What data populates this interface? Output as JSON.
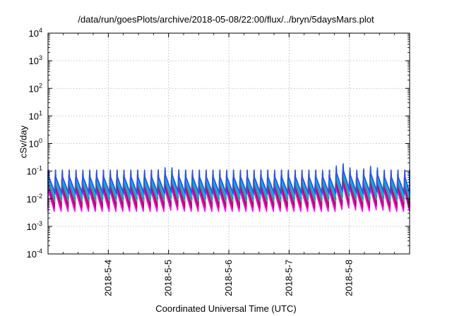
{
  "chart_data": {
    "type": "line",
    "title": "/data/run/goesPlots/archive/2018-05-08/22:00/flux/../bryn/5daysMars.plot",
    "xlabel": "Coordinated Universal Time (UTC)",
    "ylabel": "cSv/day",
    "yscale": "log",
    "ylim": [
      0.0001,
      10000
    ],
    "xlim": [
      "2018-05-03 00:00",
      "2018-05-09 00:00"
    ],
    "grid": true,
    "legend": "none",
    "y_ticks": [
      {
        "base": "10",
        "exp": "-4"
      },
      {
        "base": "10",
        "exp": "-3"
      },
      {
        "base": "10",
        "exp": "-2"
      },
      {
        "base": "10",
        "exp": "-1"
      },
      {
        "base": "10",
        "exp": "0"
      },
      {
        "base": "10",
        "exp": "1"
      },
      {
        "base": "10",
        "exp": "2"
      },
      {
        "base": "10",
        "exp": "3"
      },
      {
        "base": "10",
        "exp": "4"
      }
    ],
    "x_ticks": [
      "2018-5-4",
      "2018-5-5",
      "2018-5-6",
      "2018-5-7",
      "2018-5-8"
    ],
    "pattern": {
      "description": "repeating sawtooth cycles, roughly 2.7 hours period",
      "cycles_per_day": 8.8
    },
    "series": [
      {
        "color": "#ff00ff",
        "peak": 0.035,
        "trough": 0.0035
      },
      {
        "color": "#e0009a",
        "peak": 0.045,
        "trough": 0.0045
      },
      {
        "color": "#c8005a",
        "peak": 0.05,
        "trough": 0.005
      },
      {
        "color": "#8b2a8b",
        "peak": 0.06,
        "trough": 0.0065
      },
      {
        "color": "#6a8f8f",
        "peak": 0.07,
        "trough": 0.008
      },
      {
        "color": "#00a0a0",
        "peak": 0.08,
        "trough": 0.01
      },
      {
        "color": "#00c8ff",
        "peak": 0.09,
        "trough": 0.012
      },
      {
        "color": "#1e90ff",
        "peak": 0.1,
        "trough": 0.014
      },
      {
        "color": "#3050e0",
        "peak": 0.11,
        "trough": 0.016
      }
    ],
    "events": [
      {
        "x": "2018-05-07 21:00",
        "peak_multiplier": 1.8
      },
      {
        "x": "2018-05-08 09:00",
        "peak_multiplier": 1.4
      },
      {
        "x": "2018-05-05 00:00",
        "peak_multiplier": 1.3
      }
    ]
  }
}
